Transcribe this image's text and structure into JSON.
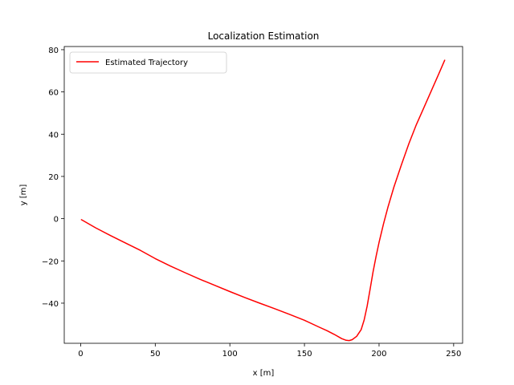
{
  "chart_data": {
    "type": "line",
    "title": "Localization Estimation",
    "xlabel": "x [m]",
    "ylabel": "y [m]",
    "xlim": [
      -11,
      256
    ],
    "ylim": [
      -59,
      81.5
    ],
    "xticks": [
      0,
      50,
      100,
      150,
      200,
      250
    ],
    "yticks": [
      -40,
      -20,
      0,
      20,
      40,
      60,
      80
    ],
    "xtick_labels": [
      "0",
      "50",
      "100",
      "150",
      "200",
      "250"
    ],
    "ytick_labels": [
      "−40",
      "−20",
      "0",
      "20",
      "40",
      "60",
      "80"
    ],
    "grid": false,
    "legend": "upper-left",
    "series": [
      {
        "name": "Estimated Trajectory",
        "color": "#ff0000",
        "x": [
          0.5,
          10,
          20,
          30,
          40,
          50,
          60,
          70,
          80,
          90,
          100,
          110,
          120,
          130,
          140,
          150,
          160,
          165,
          170,
          175,
          178,
          180,
          182,
          185,
          188,
          190,
          192,
          194,
          196,
          198,
          200,
          203,
          206,
          210,
          215,
          220,
          225,
          230,
          235,
          240,
          244
        ],
        "y": [
          -0.5,
          -4.3,
          -8,
          -11.5,
          -15,
          -18.9,
          -22.4,
          -25.6,
          -28.7,
          -31.6,
          -34.5,
          -37.3,
          -40,
          -42.6,
          -45.3,
          -48.1,
          -51.4,
          -53,
          -54.8,
          -56.8,
          -57.6,
          -57.7,
          -57.3,
          -55.7,
          -52.5,
          -48,
          -41.5,
          -33.5,
          -25.2,
          -17.8,
          -11.2,
          -2.5,
          5.5,
          15,
          25.5,
          35.5,
          44.5,
          52.5,
          60.5,
          68.5,
          75
        ]
      }
    ]
  }
}
